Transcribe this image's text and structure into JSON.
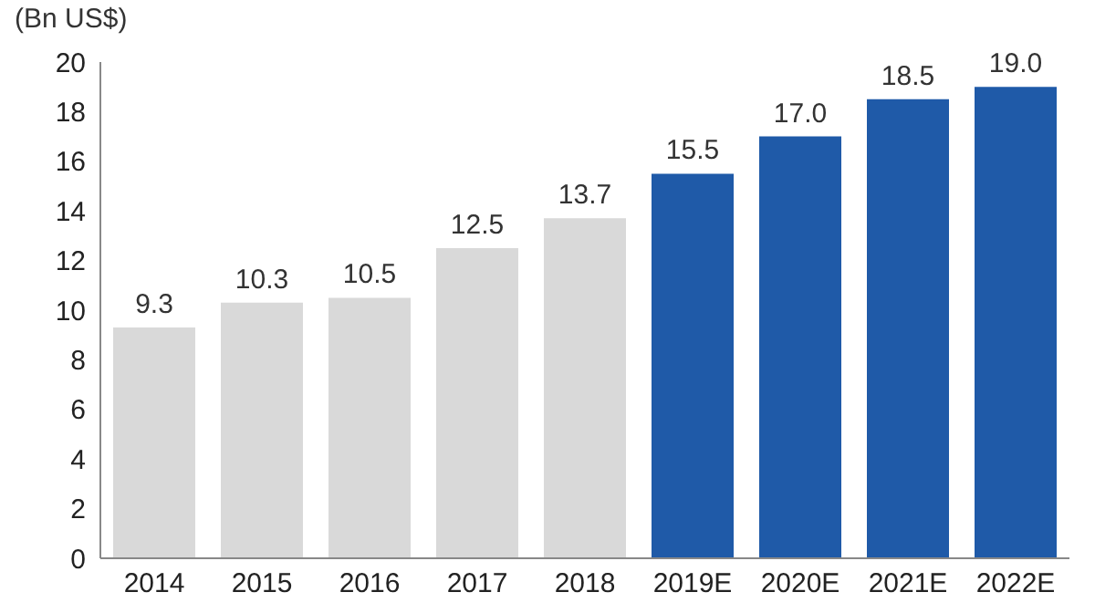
{
  "chart_data": {
    "type": "bar",
    "ylabel": "(Bn US$)",
    "categories": [
      "2014",
      "2015",
      "2016",
      "2017",
      "2018",
      "2019E",
      "2020E",
      "2021E",
      "2022E"
    ],
    "values": [
      9.3,
      10.3,
      10.5,
      12.5,
      13.7,
      15.5,
      17.0,
      18.5,
      19.0
    ],
    "value_labels": [
      "9.3",
      "10.3",
      "10.5",
      "12.5",
      "13.7",
      "15.5",
      "17.0",
      "18.5",
      "19.0"
    ],
    "colors": [
      "#d9d9d9",
      "#d9d9d9",
      "#d9d9d9",
      "#d9d9d9",
      "#d9d9d9",
      "#1f5aa8",
      "#1f5aa8",
      "#1f5aa8",
      "#1f5aa8"
    ],
    "ylim": [
      0,
      20
    ],
    "yticks": [
      0,
      2,
      4,
      6,
      8,
      10,
      12,
      14,
      16,
      18,
      20
    ],
    "grid": false
  }
}
